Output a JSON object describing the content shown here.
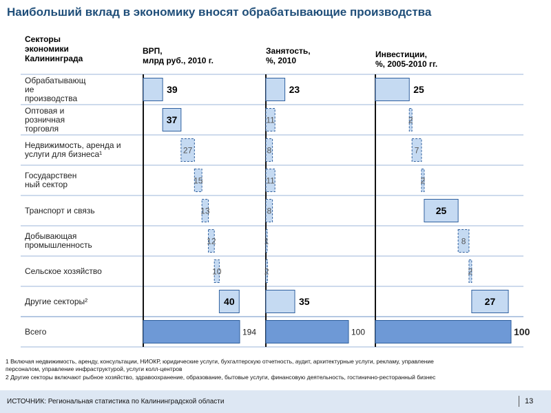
{
  "title": "Наибольший вклад в экономику вносят обрабатывающие производства",
  "headers": {
    "sectors": "Секторы\nэкономики\nКалининграда",
    "grp": "ВРП,\nмлрд руб., 2010 г.",
    "employment": "Занятость,\n%, 2010",
    "investment": "Инвестиции,\n%, 2005-2010 гг."
  },
  "rows": [
    {
      "label": "Обрабатывающ\nие\nпроизводства"
    },
    {
      "label": "Оптовая и\nрозничная\nторговля"
    },
    {
      "label": "Недвижимость, аренда и\nуслуги для бизнеса¹"
    },
    {
      "label": "Государствен\nный сектор"
    },
    {
      "label": "Транспорт и связь"
    },
    {
      "label": "Добывающая\nпромышленность"
    },
    {
      "label": "Сельское хозяйство"
    },
    {
      "label": "Другие секторы²"
    },
    {
      "label": "Всего"
    }
  ],
  "chart_data": [
    {
      "type": "bar",
      "title": "ВРП, млрд руб., 2010 г.",
      "categories": [
        "Обрабатывающие производства",
        "Оптовая и розничная торговля",
        "Недвижимость, аренда и услуги для бизнеса",
        "Государственный сектор",
        "Транспорт и связь",
        "Добывающая промышленность",
        "Сельское хозяйство",
        "Другие секторы",
        "Всего"
      ],
      "values": [
        39,
        37,
        27,
        15,
        13,
        12,
        10,
        40,
        194
      ],
      "waterfall": true
    },
    {
      "type": "bar",
      "title": "Занятость, %, 2010",
      "categories": [
        "Обрабатывающие производства",
        "Оптовая и розничная торговля",
        "Недвижимость, аренда и услуги для бизнеса",
        "Государственный сектор",
        "Транспорт и связь",
        "Добывающая промышленность",
        "Сельское хозяйство",
        "Другие секторы",
        "Всего"
      ],
      "values": [
        23,
        11,
        8,
        11,
        8,
        1,
        2,
        35,
        100
      ],
      "waterfall": false
    },
    {
      "type": "bar",
      "title": "Инвестиции, %, 2005-2010 гг.",
      "categories": [
        "Обрабатывающие производства",
        "Оптовая и розничная торговля",
        "Недвижимость, аренда и услуги для бизнеса",
        "Государственный сектор",
        "Транспорт и связь",
        "Добывающая промышленность",
        "Сельское хозяйство",
        "Другие секторы",
        "Всего"
      ],
      "values": [
        25,
        2,
        7,
        2,
        25,
        8,
        2,
        27,
        100
      ],
      "waterfall": true
    }
  ],
  "footnotes": [
    "1 Включая недвижимость, аренду, консультации, НИОКР, юридические услуги, бухгалтерскую отчетность, аудит, архитектурные услуги, рекламу, управление\n   персоналом, управление инфраструктурой, услуги колл-центров",
    "2 Другие секторы включают рыбное хозяйство, здравоохранение, образование, бытовые услуги, финансовую деятельность, гостинично-ресторанный бизнес"
  ],
  "footer": {
    "source": "ИСТОЧНИК: Региональная статистика по Калининградской области",
    "page": "13"
  },
  "colors": {
    "bar_fill": "#c5daf2",
    "total_fill": "#6e99d6",
    "bar_stroke": "#2e5f9e",
    "title": "#1f4e79",
    "footer_bg": "#dde7f3"
  }
}
